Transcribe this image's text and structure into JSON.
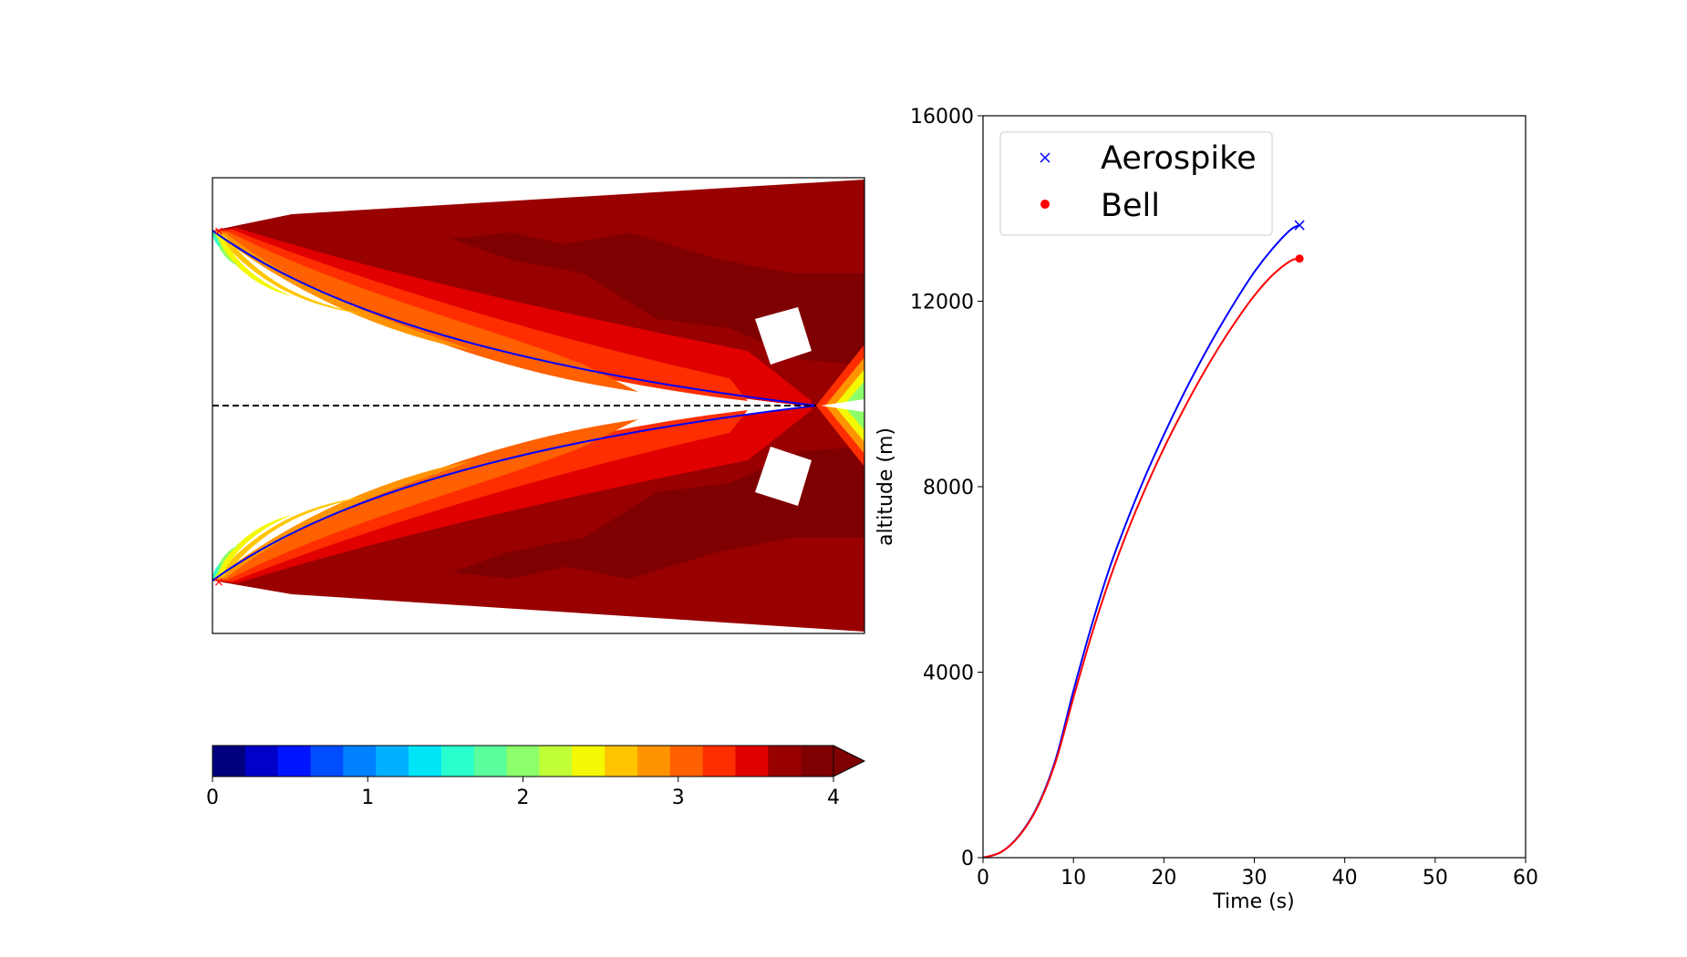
{
  "chart_data": [
    {
      "type": "contour",
      "description_of_axes": "nozzle flow field, mirrored about dashed centerline; no tick labels shown",
      "colorbar": {
        "min": 0,
        "max": 4,
        "levels": 20,
        "extend": "max",
        "ticks": [
          "0",
          "1",
          "2",
          "3",
          "4"
        ],
        "colors": [
          "#00007f",
          "#0000c9",
          "#0015ff",
          "#004dff",
          "#0081ff",
          "#00b1ff",
          "#00e4f8",
          "#29ffce",
          "#5aff9c",
          "#8dff6a",
          "#c1ff36",
          "#f4f802",
          "#ffc500",
          "#ff9400",
          "#ff6000",
          "#ff2e00",
          "#e00000",
          "#990000",
          "#7f0000"
        ]
      },
      "centerline": "dashed",
      "wall_color": "#0000ff",
      "throat_marker_color": "#ff0000"
    },
    {
      "type": "line",
      "xlabel": "Time (s)",
      "ylabel": "altitude (m)",
      "xlim": [
        0,
        60
      ],
      "ylim": [
        0,
        16000
      ],
      "xticks": [
        "0",
        "10",
        "20",
        "30",
        "40",
        "50",
        "60"
      ],
      "yticks": [
        "0",
        "4000",
        "8000",
        "12000",
        "16000"
      ],
      "legend_position": "upper-left",
      "series": [
        {
          "name": "Aerospike",
          "color": "#0000ff",
          "marker": "x",
          "x": [
            0,
            2,
            4,
            6,
            8,
            10,
            12,
            14,
            16,
            18,
            20,
            22,
            24,
            26,
            28,
            30,
            32,
            34,
            35
          ],
          "y": [
            0,
            120,
            480,
            1100,
            2100,
            3600,
            5000,
            6250,
            7300,
            8250,
            9120,
            9930,
            10680,
            11380,
            12030,
            12630,
            13130,
            13540,
            13640
          ]
        },
        {
          "name": "Bell",
          "color": "#ff0000",
          "marker": "o",
          "x": [
            0,
            2,
            4,
            6,
            8,
            10,
            12,
            14,
            16,
            18,
            20,
            22,
            24,
            26,
            28,
            30,
            32,
            34,
            35
          ],
          "y": [
            0,
            120,
            470,
            1080,
            2050,
            3450,
            4800,
            6000,
            7050,
            7980,
            8830,
            9600,
            10320,
            10980,
            11580,
            12120,
            12560,
            12870,
            12920
          ]
        }
      ]
    }
  ]
}
